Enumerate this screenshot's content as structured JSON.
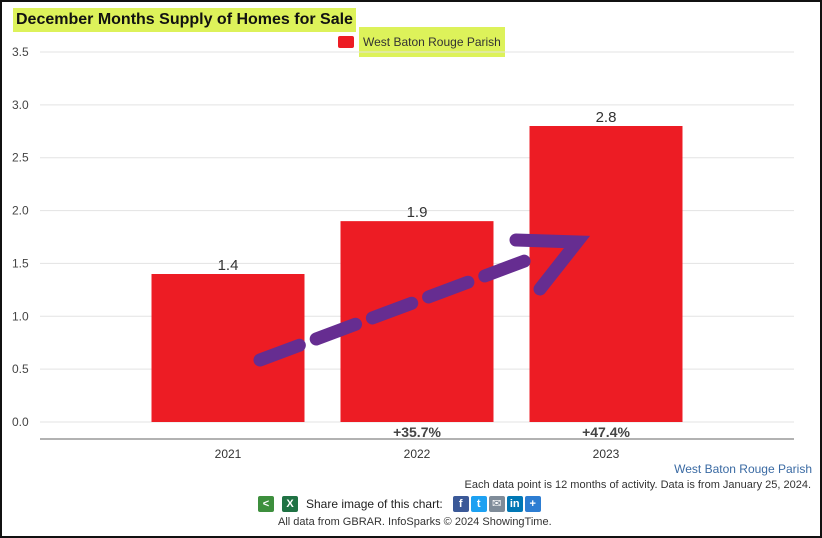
{
  "title": "December Months Supply of Homes for Sale",
  "legend": {
    "label": "West Baton Rouge Parish",
    "color": "#ed1c24"
  },
  "chart_data": {
    "type": "bar",
    "title": "December Months Supply of Homes for Sale",
    "categories": [
      "2021",
      "2022",
      "2023"
    ],
    "series": [
      {
        "name": "West Baton Rouge Parish",
        "values": [
          1.4,
          1.9,
          2.8
        ],
        "color": "#ed1c24"
      }
    ],
    "data_labels": [
      "1.4",
      "1.9",
      "2.8"
    ],
    "change_labels": [
      "",
      "+35.7%",
      "+47.4%"
    ],
    "yticks": [
      "0.0",
      "0.5",
      "1.0",
      "1.5",
      "2.0",
      "2.5",
      "3.0",
      "3.5"
    ],
    "ylim": [
      0,
      3.5
    ],
    "grid": true,
    "legend_position": "top-center",
    "annotation": "upward trend arrow",
    "arrow_color": "#662d91"
  },
  "source_label": "West Baton Rouge Parish",
  "note": "Each data point is 12 months of activity. Data is from January 25, 2024.",
  "share": {
    "label": "Share image of this chart:",
    "icons": [
      "share-icon",
      "excel-icon",
      "facebook-icon",
      "twitter-icon",
      "email-icon",
      "linkedin-icon",
      "plus-icon"
    ]
  },
  "footer": "All data from GBRAR. InfoSparks © 2024 ShowingTime."
}
